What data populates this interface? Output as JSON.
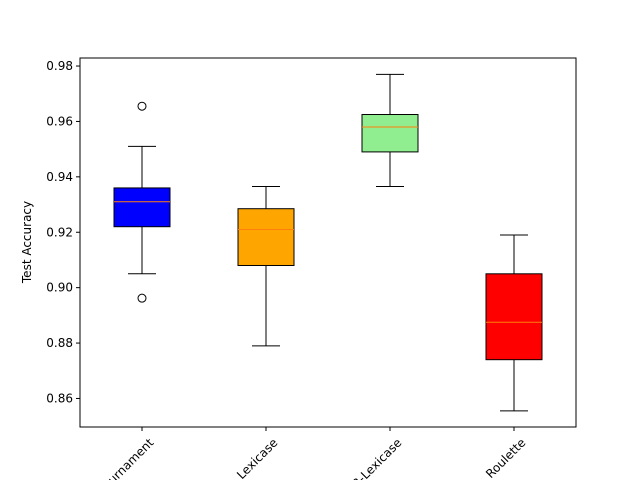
{
  "chart_data": {
    "type": "boxplot",
    "title": "",
    "xlabel": "",
    "ylabel": "Test Accuracy",
    "ylim": [
      0.8497,
      0.9829
    ],
    "yticks": [
      0.86,
      0.88,
      0.9,
      0.92,
      0.94,
      0.96,
      0.98
    ],
    "ytick_labels": [
      "0.86",
      "0.88",
      "0.90",
      "0.92",
      "0.94",
      "0.96",
      "0.98"
    ],
    "grid": false,
    "categories": [
      "Tournament",
      "Lexicase",
      "B-Lexicase",
      "Roulette"
    ],
    "boxes": [
      {
        "name": "Tournament",
        "color": "#0000ff",
        "whisker_low": 0.905,
        "q1": 0.922,
        "median": 0.931,
        "q3": 0.936,
        "whisker_high": 0.951,
        "outliers": [
          0.9655,
          0.8962
        ]
      },
      {
        "name": "Lexicase",
        "color": "#ffa500",
        "whisker_low": 0.879,
        "q1": 0.908,
        "median": 0.921,
        "q3": 0.9285,
        "whisker_high": 0.9365,
        "outliers": []
      },
      {
        "name": "B-Lexicase",
        "color": "#90ee90",
        "whisker_low": 0.9365,
        "q1": 0.949,
        "median": 0.958,
        "q3": 0.9625,
        "whisker_high": 0.977,
        "outliers": []
      },
      {
        "name": "Roulette",
        "color": "#ff0000",
        "whisker_low": 0.8555,
        "q1": 0.874,
        "median": 0.8875,
        "q3": 0.905,
        "whisker_high": 0.919,
        "outliers": []
      }
    ],
    "median_color": "#ff7f0e"
  }
}
